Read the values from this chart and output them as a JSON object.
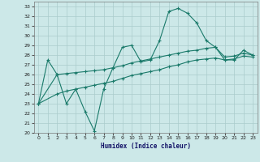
{
  "xlabel": "Humidex (Indice chaleur)",
  "bg_color": "#cce8e8",
  "grid_color": "#aacccc",
  "line_color": "#1a7a6a",
  "xlim": [
    -0.5,
    23.5
  ],
  "ylim": [
    20,
    33.5
  ],
  "xticks": [
    0,
    1,
    2,
    3,
    4,
    5,
    6,
    7,
    8,
    9,
    10,
    11,
    12,
    13,
    14,
    15,
    16,
    17,
    18,
    19,
    20,
    21,
    22,
    23
  ],
  "yticks": [
    20,
    21,
    22,
    23,
    24,
    25,
    26,
    27,
    28,
    29,
    30,
    31,
    32,
    33
  ],
  "line1_x": [
    0,
    1,
    2,
    3,
    4,
    5,
    6,
    7,
    8,
    9,
    10,
    11,
    12,
    13,
    14,
    15,
    16,
    17,
    18,
    19,
    20,
    21,
    22,
    23
  ],
  "line1_y": [
    23.0,
    27.5,
    26.0,
    23.0,
    24.5,
    22.2,
    20.2,
    24.5,
    26.7,
    28.8,
    29.0,
    27.3,
    27.5,
    29.5,
    32.5,
    32.8,
    32.3,
    31.3,
    29.5,
    28.8,
    27.5,
    27.5,
    28.5,
    28.0
  ],
  "line2_x": [
    0,
    2,
    3,
    4,
    5,
    6,
    7,
    8,
    9,
    10,
    11,
    12,
    13,
    14,
    15,
    16,
    17,
    18,
    19,
    20,
    21,
    22,
    23
  ],
  "line2_y": [
    23.0,
    26.0,
    26.1,
    26.2,
    26.3,
    26.4,
    26.5,
    26.7,
    26.9,
    27.2,
    27.4,
    27.6,
    27.8,
    28.0,
    28.2,
    28.4,
    28.5,
    28.7,
    28.8,
    27.8,
    27.9,
    28.2,
    28.0
  ],
  "line3_x": [
    0,
    2,
    3,
    4,
    5,
    6,
    7,
    8,
    9,
    10,
    11,
    12,
    13,
    14,
    15,
    16,
    17,
    18,
    19,
    20,
    21,
    22,
    23
  ],
  "line3_y": [
    23.0,
    24.0,
    24.3,
    24.5,
    24.7,
    24.9,
    25.1,
    25.3,
    25.6,
    25.9,
    26.1,
    26.3,
    26.5,
    26.8,
    27.0,
    27.3,
    27.5,
    27.6,
    27.7,
    27.5,
    27.6,
    27.9,
    27.8
  ]
}
